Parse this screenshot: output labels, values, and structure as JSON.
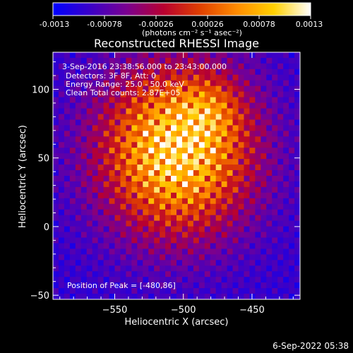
{
  "colorbar": {
    "tick_labels": [
      "-0.0013",
      "-0.00078",
      "-0.00026",
      "0.00026",
      "0.00078",
      "0.0013"
    ],
    "tick_values": [
      -0.0013,
      -0.00078,
      -0.00026,
      0.00026,
      0.00078,
      0.0013
    ],
    "range": [
      -0.0013,
      0.0013
    ],
    "units_label": "(photons cm⁻² s⁻¹ asec⁻²)",
    "colors": [
      "#0000ff",
      "#3a00c8",
      "#7a0090",
      "#b80030",
      "#e04000",
      "#ff8c00",
      "#ffd000",
      "#ffffff"
    ]
  },
  "chart_data": {
    "type": "heatmap",
    "title": "Reconstructed RHESSI Image",
    "xlabel": "Heliocentric X (arcsec)",
    "ylabel": "Heliocentric Y (arcsec)",
    "xlim": [
      -595,
      -415
    ],
    "ylim": [
      -53,
      127
    ],
    "x_ticks": [
      -550,
      -500,
      -450
    ],
    "x_tick_labels": [
      "−550",
      "−500",
      "−450"
    ],
    "y_ticks": [
      -50,
      0,
      50,
      100
    ],
    "y_tick_labels": [
      "−50",
      "0",
      "50",
      "100"
    ],
    "annotations": [
      "3-Sep-2016 23:38:56.000 to 23:43:00.000",
      "Detectors: 3F 8F, Att: 0",
      "Energy Range: 25.0 - 50.0 keV",
      "Clean    Total counts: 2.87E+05"
    ],
    "peak_label": "Position of Peak = [-480,86]",
    "peak_position": [
      -480,
      86
    ],
    "colormap": "hot/blue"
  },
  "footer": {
    "timestamp": "6-Sep-2022 05:38"
  }
}
